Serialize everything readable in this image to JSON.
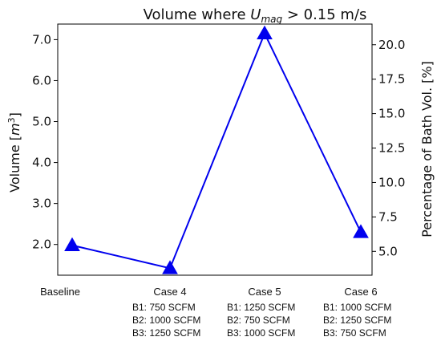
{
  "chart_data": {
    "type": "line",
    "title": {
      "prefix": "Volume where ",
      "var": "U",
      "sub": "mag",
      "suffix": " > 0.15 m/s"
    },
    "ylabel": {
      "text": "Volume [",
      "math": "m",
      "sup": "3",
      "close": "]"
    },
    "y2label": "Percentage of Bath Vol. [%]",
    "categories": [
      "Baseline",
      "Case 4",
      "Case 5",
      "Case 6"
    ],
    "category_details": [
      [],
      [
        "B1: 750 SCFM",
        "B2: 1000 SCFM",
        "B3: 1250 SCFM"
      ],
      [
        "B1: 1250 SCFM",
        "B2: 750 SCFM",
        "B3: 1000 SCFM"
      ],
      [
        "B1: 1000 SCFM",
        "B2: 1250 SCFM",
        "B3: 750 SCFM"
      ]
    ],
    "series": [
      {
        "values": [
          1.98,
          1.42,
          7.15,
          2.3
        ],
        "color": "#0000ee",
        "marker": "triangle"
      }
    ],
    "ylim": [
      1.25,
      7.38
    ],
    "yticks": [
      2.0,
      3.0,
      4.0,
      5.0,
      6.0,
      7.0
    ],
    "y2lim": [
      3.27,
      21.5
    ],
    "y2ticks": [
      5.0,
      7.5,
      10.0,
      12.5,
      15.0,
      17.5,
      20.0
    ],
    "grid": false
  }
}
